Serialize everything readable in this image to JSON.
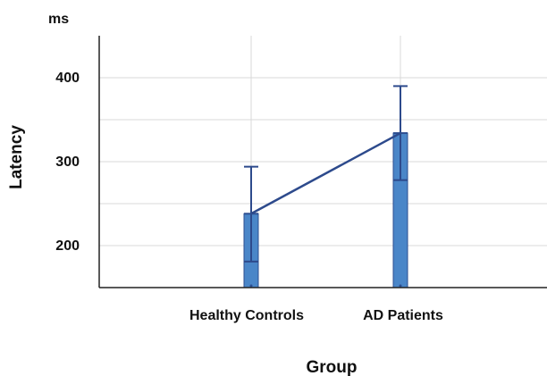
{
  "chart_data": {
    "type": "bar",
    "title": "",
    "xlabel": "Group",
    "ylabel": "Latency",
    "y_unit": "ms",
    "categories": [
      "Healthy Controls",
      "AD Patients"
    ],
    "ylim": [
      150,
      450
    ],
    "yticks": [
      200,
      300,
      400
    ],
    "grid": true,
    "legend": "none",
    "series": [
      {
        "values": [
          238,
          334
        ],
        "error_upper": [
          294,
          390
        ],
        "error_lower": [
          181,
          278
        ],
        "connect_line": true
      }
    ],
    "colors": {
      "bar_fill": "#4a86c8",
      "bar_stroke": "#2d4f91",
      "line": "#2d4a8c",
      "grid": "#d8d8d8",
      "axis": "#222222"
    }
  }
}
